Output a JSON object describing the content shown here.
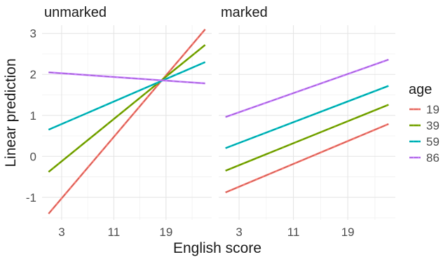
{
  "chart_data": {
    "type": "line",
    "xlabel": "English score",
    "ylabel": "Linear prediction",
    "xlim": [
      0,
      26
    ],
    "ylim": [
      -1.55,
      3.2
    ],
    "x_ticks": [
      3,
      11,
      19
    ],
    "x_tick_labels": [
      "3",
      "11",
      "19"
    ],
    "y_ticks": [
      -1,
      0,
      1,
      2,
      3
    ],
    "y_tick_labels": [
      "-1",
      "0",
      "1",
      "2",
      "3"
    ],
    "grid": true,
    "legend": {
      "title": "age",
      "position": "right",
      "items": [
        "19",
        "39",
        "59",
        "86"
      ]
    },
    "colors": {
      "19": "#F8766D",
      "39": "#7CAE00",
      "59": "#00BFC4",
      "86": "#C77CFF"
    },
    "panels": [
      {
        "title": "unmarked",
        "series": [
          {
            "name": "19",
            "x": [
              1,
              25
            ],
            "y": [
              -1.4,
              3.1
            ]
          },
          {
            "name": "39",
            "x": [
              1,
              25
            ],
            "y": [
              -0.38,
              2.72
            ]
          },
          {
            "name": "59",
            "x": [
              1,
              25
            ],
            "y": [
              0.65,
              2.3
            ]
          },
          {
            "name": "86",
            "x": [
              1,
              25
            ],
            "y": [
              2.05,
              1.78
            ]
          }
        ]
      },
      {
        "title": "marked",
        "series": [
          {
            "name": "19",
            "x": [
              1,
              25
            ],
            "y": [
              -0.88,
              0.79
            ]
          },
          {
            "name": "39",
            "x": [
              1,
              25
            ],
            "y": [
              -0.35,
              1.26
            ]
          },
          {
            "name": "59",
            "x": [
              1,
              25
            ],
            "y": [
              0.2,
              1.72
            ]
          },
          {
            "name": "86",
            "x": [
              1,
              25
            ],
            "y": [
              0.96,
              2.36
            ]
          }
        ]
      }
    ]
  }
}
